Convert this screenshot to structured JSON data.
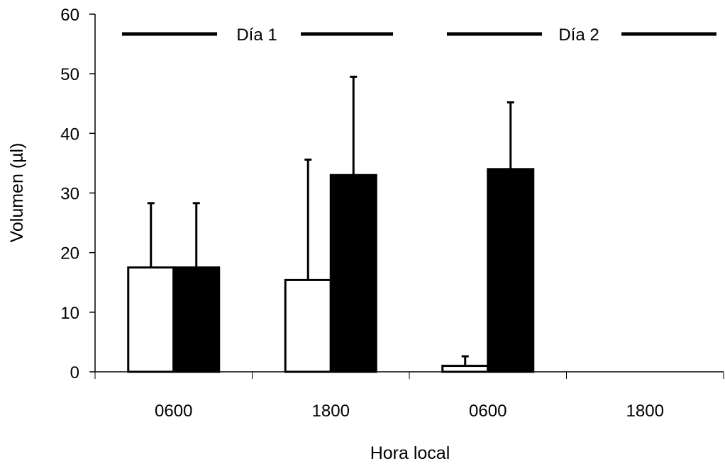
{
  "chart_data": {
    "type": "bar",
    "title": "",
    "xlabel": "Hora local",
    "ylabel": "Volumen (µl)",
    "ylim": [
      0,
      60
    ],
    "yticks": [
      0,
      10,
      20,
      30,
      40,
      50,
      60
    ],
    "categories": [
      "0600",
      "1800",
      "0600",
      "1800"
    ],
    "day_labels": [
      "Día 1",
      "Día 2"
    ],
    "series": [
      {
        "color": "#ffffff",
        "values": [
          17.5,
          15.4,
          1.0,
          null
        ],
        "error": [
          10.8,
          20.2,
          1.6,
          null
        ]
      },
      {
        "color": "#000000",
        "values": [
          17.5,
          33.0,
          34.0,
          null
        ],
        "error": [
          10.8,
          16.5,
          11.2,
          null
        ]
      }
    ],
    "grid": false,
    "legend": "none"
  }
}
